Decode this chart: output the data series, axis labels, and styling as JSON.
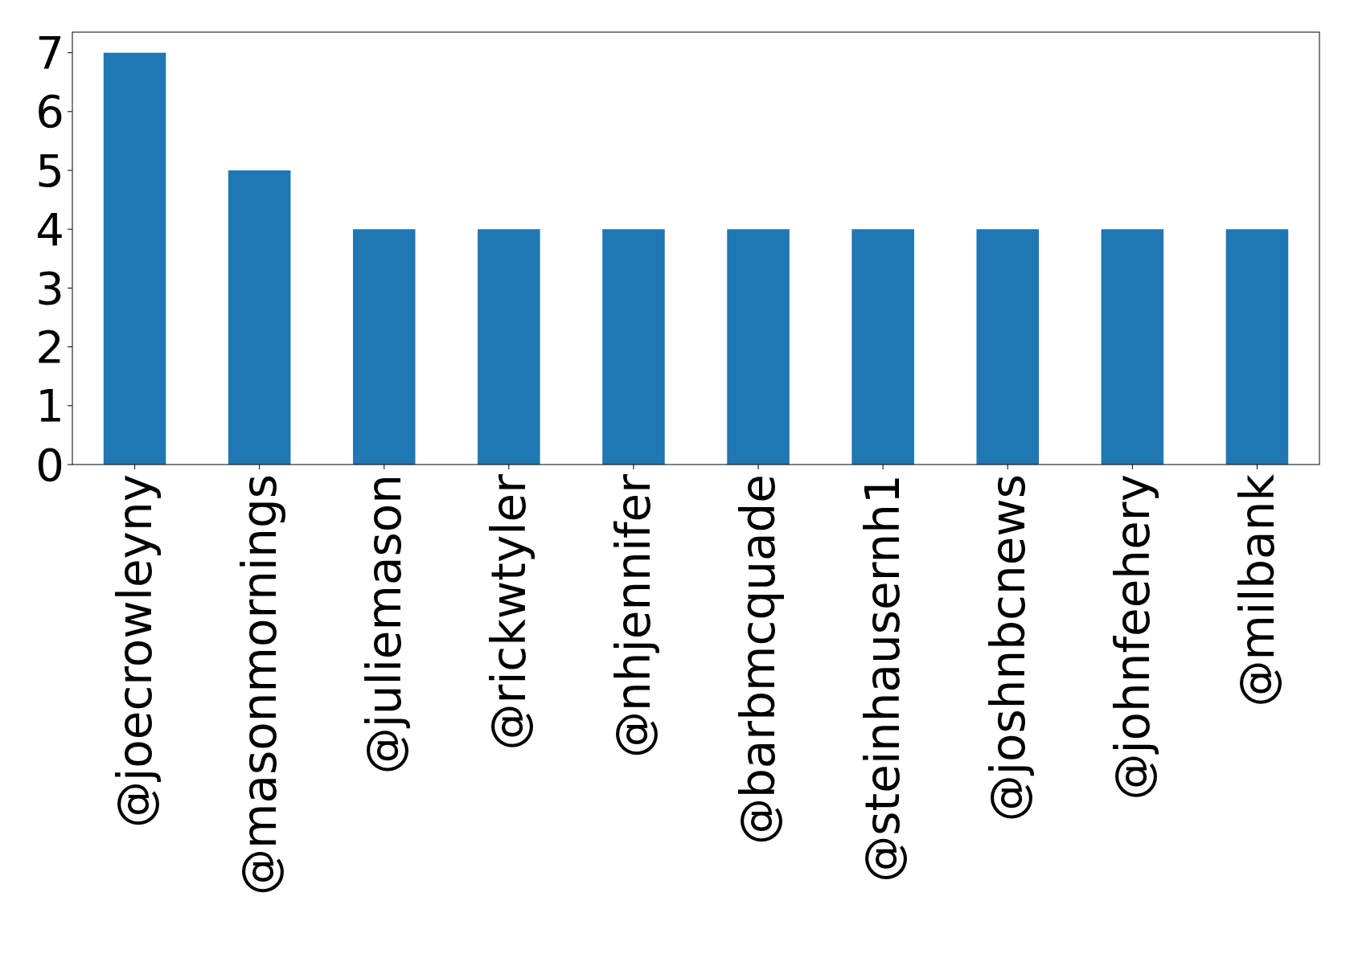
{
  "chart_data": {
    "type": "bar",
    "categories": [
      "@joecrowleyny",
      "@masonmornings",
      "@juliemason",
      "@rickwtyler",
      "@nhjennifer",
      "@barbmcquade",
      "@steinhausernh1",
      "@joshnbcnews",
      "@johnfeehery",
      "@milbank"
    ],
    "values": [
      7,
      5,
      4,
      4,
      4,
      4,
      4,
      4,
      4,
      4
    ],
    "color": "#1f77b4",
    "ylim": [
      0,
      7.35
    ],
    "yticks": [
      0,
      1,
      2,
      3,
      4,
      5,
      6,
      7
    ],
    "grid": false
  }
}
